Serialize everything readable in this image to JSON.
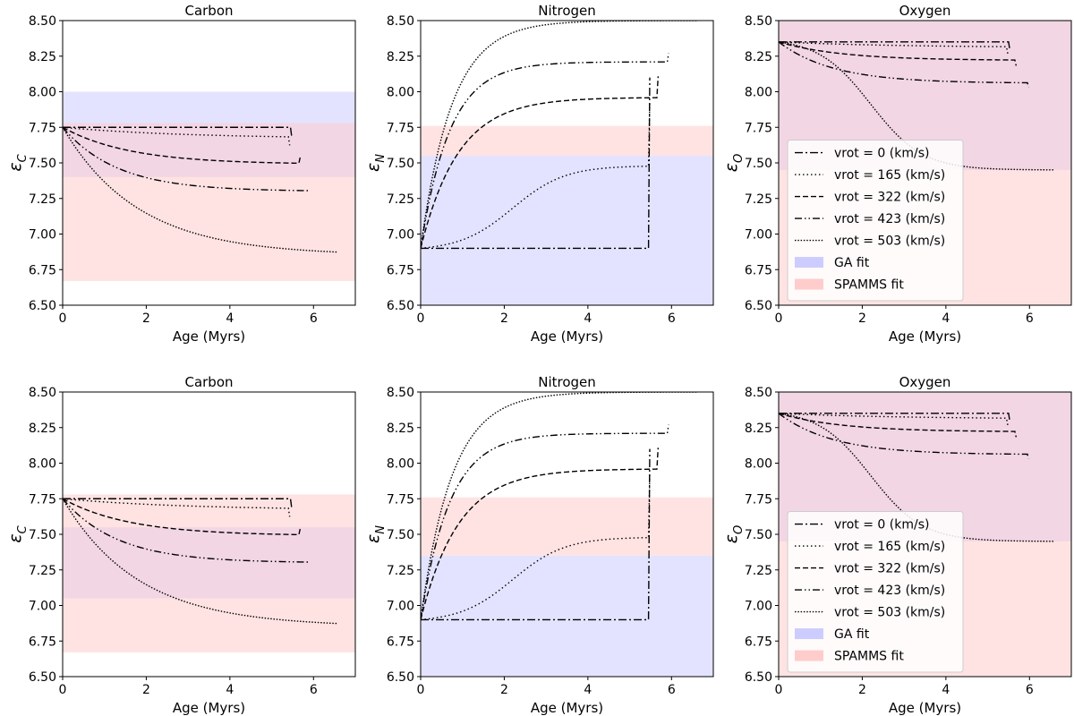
{
  "figure": {
    "xlabel": "Age (Myrs)",
    "legend": {
      "entries": [
        {
          "label": "vrot = 0 (km/s)",
          "style": "dashdot"
        },
        {
          "label": "vrot = 165 (km/s)",
          "style": "dotted"
        },
        {
          "label": "vrot = 322 (km/s)",
          "style": "dashed"
        },
        {
          "label": "vrot = 423 (km/s)",
          "style": "dashdotdot"
        },
        {
          "label": "vrot = 503 (km/s)",
          "style": "densedot"
        }
      ],
      "bands": [
        {
          "label": "GA fit",
          "color": "#ccccff"
        },
        {
          "label": "SPAMMS fit",
          "color": "#ffcccc"
        }
      ]
    }
  },
  "chart_data": [
    {
      "type": "line",
      "title": "Carbon",
      "element": "C",
      "xlabel": "Age (Myrs)",
      "ylabel": "εC",
      "xlim": [
        0,
        7
      ],
      "ylim": [
        6.5,
        8.5
      ],
      "xticks": [
        "0",
        "2",
        "4",
        "6"
      ],
      "yticks": [
        "6.50",
        "6.75",
        "7.00",
        "7.25",
        "7.50",
        "7.75",
        "8.00",
        "8.25",
        "8.50"
      ],
      "ga_band": [
        7.4,
        8.0
      ],
      "spamms_band": [
        6.67,
        7.78
      ],
      "series": [
        {
          "name": "vrot = 0 (km/s)",
          "start": 7.75,
          "end": 7.75,
          "tau": 3,
          "t_end": 5.45,
          "drop": -0.07
        },
        {
          "name": "vrot = 165 (km/s)",
          "start": 7.75,
          "end": 7.67,
          "tau": 3,
          "t_end": 5.4,
          "drop": -0.06
        },
        {
          "name": "vrot = 322 (km/s)",
          "start": 7.75,
          "end": 7.49,
          "tau": 1.6,
          "t_end": 5.65,
          "drop": 0.04
        },
        {
          "name": "vrot = 423 (km/s)",
          "start": 7.75,
          "end": 7.3,
          "tau": 1.3,
          "t_end": 5.85,
          "drop": 0
        },
        {
          "name": "vrot = 503 (km/s)",
          "start": 7.75,
          "end": 6.85,
          "tau": 1.8,
          "t_end": 6.55,
          "drop": 0
        }
      ]
    },
    {
      "type": "line",
      "title": "Nitrogen",
      "element": "N",
      "xlabel": "Age (Myrs)",
      "ylabel": "εN",
      "xlim": [
        0,
        7
      ],
      "ylim": [
        6.5,
        8.5
      ],
      "xticks": [
        "0",
        "2",
        "4",
        "6"
      ],
      "yticks": [
        "6.50",
        "6.75",
        "7.00",
        "7.25",
        "7.50",
        "7.75",
        "8.00",
        "8.25",
        "8.50"
      ],
      "ga_band": [
        6.5,
        7.55
      ],
      "spamms_band": [
        7.55,
        7.76
      ],
      "series": [
        {
          "name": "vrot = 0 (km/s)",
          "start": 6.9,
          "end": 6.9,
          "tau": 1,
          "t_end": 5.45,
          "drop": 1.2
        },
        {
          "name": "vrot = 165 (km/s)",
          "start": 6.9,
          "end": 7.48,
          "tau": 2.2,
          "t_end": 5.45,
          "drop": 0.45,
          "sigmoid": true
        },
        {
          "name": "vrot = 322 (km/s)",
          "start": 6.9,
          "end": 7.96,
          "tau": 0.9,
          "t_end": 5.65,
          "drop": 0.15
        },
        {
          "name": "vrot = 423 (km/s)",
          "start": 6.9,
          "end": 8.21,
          "tau": 0.7,
          "t_end": 5.9,
          "drop": 0.06
        },
        {
          "name": "vrot = 503 (km/s)",
          "start": 6.9,
          "end": 8.5,
          "tau": 0.75,
          "t_end": 6.6,
          "drop": 0
        }
      ]
    },
    {
      "type": "line",
      "title": "Oxygen",
      "element": "O",
      "xlabel": "Age (Myrs)",
      "ylabel": "εO",
      "xlim": [
        0,
        7
      ],
      "ylim": [
        6.5,
        8.5
      ],
      "xticks": [
        "0",
        "2",
        "4",
        "6"
      ],
      "yticks": [
        "6.50",
        "6.75",
        "7.00",
        "7.25",
        "7.50",
        "7.75",
        "8.00",
        "8.25",
        "8.50"
      ],
      "ga_band": [
        7.45,
        8.5
      ],
      "spamms_band": [
        6.5,
        8.5
      ],
      "series": [
        {
          "name": "vrot = 0 (km/s)",
          "start": 8.35,
          "end": 8.35,
          "tau": 3,
          "t_end": 5.5,
          "drop": -0.06
        },
        {
          "name": "vrot = 165 (km/s)",
          "start": 8.35,
          "end": 8.31,
          "tau": 3,
          "t_end": 5.45,
          "drop": -0.05
        },
        {
          "name": "vrot = 322 (km/s)",
          "start": 8.35,
          "end": 8.22,
          "tau": 1.5,
          "t_end": 5.65,
          "drop": -0.04
        },
        {
          "name": "vrot = 423 (km/s)",
          "start": 8.35,
          "end": 8.06,
          "tau": 1.3,
          "t_end": 5.95,
          "drop": -0.03
        },
        {
          "name": "vrot = 503 (km/s)",
          "start": 8.35,
          "end": 7.45,
          "tau": 2.2,
          "t_end": 6.55,
          "drop": 0,
          "sigmoid": true
        }
      ]
    },
    {
      "type": "line",
      "title": "Carbon",
      "element": "C",
      "xlabel": "Age (Myrs)",
      "ylabel": "εC",
      "xlim": [
        0,
        7
      ],
      "ylim": [
        6.5,
        8.5
      ],
      "xticks": [
        "0",
        "2",
        "4",
        "6"
      ],
      "yticks": [
        "6.50",
        "6.75",
        "7.00",
        "7.25",
        "7.50",
        "7.75",
        "8.00",
        "8.25",
        "8.50"
      ],
      "ga_band": [
        7.05,
        7.55
      ],
      "spamms_band": [
        6.67,
        7.78
      ],
      "series": [
        {
          "name": "vrot = 0 (km/s)",
          "start": 7.75,
          "end": 7.75,
          "tau": 3,
          "t_end": 5.45,
          "drop": -0.07
        },
        {
          "name": "vrot = 165 (km/s)",
          "start": 7.75,
          "end": 7.67,
          "tau": 3,
          "t_end": 5.4,
          "drop": -0.06
        },
        {
          "name": "vrot = 322 (km/s)",
          "start": 7.75,
          "end": 7.49,
          "tau": 1.6,
          "t_end": 5.65,
          "drop": 0.04
        },
        {
          "name": "vrot = 423 (km/s)",
          "start": 7.75,
          "end": 7.3,
          "tau": 1.3,
          "t_end": 5.85,
          "drop": 0
        },
        {
          "name": "vrot = 503 (km/s)",
          "start": 7.75,
          "end": 6.85,
          "tau": 1.8,
          "t_end": 6.55,
          "drop": 0
        }
      ]
    },
    {
      "type": "line",
      "title": "Nitrogen",
      "element": "N",
      "xlabel": "Age (Myrs)",
      "ylabel": "εN",
      "xlim": [
        0,
        7
      ],
      "ylim": [
        6.5,
        8.5
      ],
      "xticks": [
        "0",
        "2",
        "4",
        "6"
      ],
      "yticks": [
        "6.50",
        "6.75",
        "7.00",
        "7.25",
        "7.50",
        "7.75",
        "8.00",
        "8.25",
        "8.50"
      ],
      "ga_band": [
        6.5,
        7.35
      ],
      "spamms_band": [
        7.35,
        7.76
      ],
      "series": [
        {
          "name": "vrot = 0 (km/s)",
          "start": 6.9,
          "end": 6.9,
          "tau": 1,
          "t_end": 5.45,
          "drop": 1.2
        },
        {
          "name": "vrot = 165 (km/s)",
          "start": 6.9,
          "end": 7.48,
          "tau": 2.2,
          "t_end": 5.45,
          "drop": 0.45,
          "sigmoid": true
        },
        {
          "name": "vrot = 322 (km/s)",
          "start": 6.9,
          "end": 7.96,
          "tau": 0.9,
          "t_end": 5.65,
          "drop": 0.15
        },
        {
          "name": "vrot = 423 (km/s)",
          "start": 6.9,
          "end": 8.21,
          "tau": 0.7,
          "t_end": 5.9,
          "drop": 0.06
        },
        {
          "name": "vrot = 503 (km/s)",
          "start": 6.9,
          "end": 8.5,
          "tau": 0.75,
          "t_end": 6.6,
          "drop": 0
        }
      ]
    },
    {
      "type": "line",
      "title": "Oxygen",
      "element": "O",
      "xlabel": "Age (Myrs)",
      "ylabel": "εO",
      "xlim": [
        0,
        7
      ],
      "ylim": [
        6.5,
        8.5
      ],
      "xticks": [
        "0",
        "2",
        "4",
        "6"
      ],
      "yticks": [
        "6.50",
        "6.75",
        "7.00",
        "7.25",
        "7.50",
        "7.75",
        "8.00",
        "8.25",
        "8.50"
      ],
      "ga_band": [
        7.45,
        8.5
      ],
      "spamms_band": [
        6.5,
        8.5
      ],
      "series": [
        {
          "name": "vrot = 0 (km/s)",
          "start": 8.35,
          "end": 8.35,
          "tau": 3,
          "t_end": 5.5,
          "drop": -0.06
        },
        {
          "name": "vrot = 165 (km/s)",
          "start": 8.35,
          "end": 8.31,
          "tau": 3,
          "t_end": 5.45,
          "drop": -0.05
        },
        {
          "name": "vrot = 322 (km/s)",
          "start": 8.35,
          "end": 8.22,
          "tau": 1.5,
          "t_end": 5.65,
          "drop": -0.04
        },
        {
          "name": "vrot = 423 (km/s)",
          "start": 8.35,
          "end": 8.06,
          "tau": 1.3,
          "t_end": 5.95,
          "drop": -0.03
        },
        {
          "name": "vrot = 503 (km/s)",
          "start": 8.35,
          "end": 7.45,
          "tau": 2.2,
          "t_end": 6.55,
          "drop": 0,
          "sigmoid": true
        }
      ]
    }
  ]
}
